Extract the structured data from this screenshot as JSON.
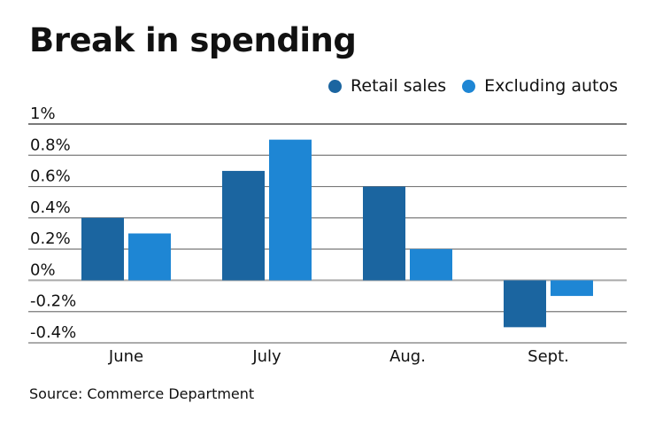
{
  "chart_data": {
    "type": "bar",
    "title": "Break in spending",
    "categories": [
      "June",
      "July",
      "Aug.",
      "Sept."
    ],
    "series": [
      {
        "name": "Retail sales",
        "color": "#1b65a0",
        "values": [
          0.4,
          0.7,
          0.6,
          -0.3
        ]
      },
      {
        "name": "Excluding autos",
        "color": "#1e86d4",
        "values": [
          0.3,
          0.9,
          0.2,
          -0.1
        ]
      }
    ],
    "yticks": [
      1,
      0.8,
      0.6,
      0.4,
      0.2,
      0,
      -0.2,
      -0.4
    ],
    "ytick_labels": [
      "1%",
      "0.8%",
      "0.6%",
      "0.4%",
      "0.2%",
      "0%",
      "-0.2%",
      "-0.4%"
    ],
    "ylim": [
      -0.4,
      1
    ],
    "xlabel": "",
    "ylabel": "",
    "grid": true,
    "legend_position": "top-right",
    "source": "Source: Commerce Department"
  }
}
